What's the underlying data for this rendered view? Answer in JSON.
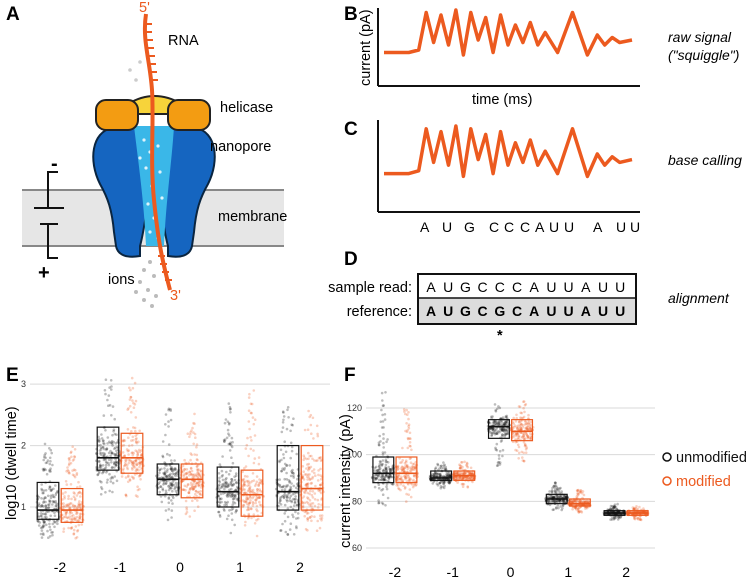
{
  "colors": {
    "orange": "#ec5a1f",
    "blue": "#1565c0",
    "lightblue": "#3ab7e8",
    "helicase": "#f39c12",
    "helicaseTop": "#f7d33a",
    "membrane": "#e6e6e6",
    "black": "#111111"
  },
  "panelA": {
    "letter": "A",
    "five_prime": "5'",
    "three_prime": "3'",
    "rna": "RNA",
    "helicase": "helicase",
    "nanopore": "nanopore",
    "membrane": "membrane",
    "ions": "ions",
    "minus": "-",
    "plus": "+"
  },
  "panelB": {
    "letter": "B",
    "ylabel": "current (pA)",
    "xlabel": "time (ms)",
    "caption_line1": "raw signal",
    "caption_line2": "(\"squiggle\")"
  },
  "panelC": {
    "letter": "C",
    "caption": "base calling",
    "bases": [
      "A",
      "U",
      "G",
      "C",
      "C",
      "C",
      "A",
      "U",
      "U",
      "A",
      "U",
      "U"
    ]
  },
  "panelD": {
    "letter": "D",
    "sample_label": "sample read:",
    "reference_label": "reference:",
    "sample_seq": [
      "A",
      "U",
      "G",
      "C",
      "C",
      "C",
      "A",
      "U",
      "U",
      "A",
      "U",
      "U"
    ],
    "reference_seq": [
      "A",
      "U",
      "G",
      "C",
      "G",
      "C",
      "A",
      "U",
      "U",
      "A",
      "U",
      "U"
    ],
    "mismatch_marker": "*",
    "caption": "alignment"
  },
  "panelE": {
    "letter": "E",
    "ylabel": "log10 (dwell time)",
    "yticks": [
      "1",
      "2",
      "3"
    ],
    "categories": [
      "-2",
      "-1",
      "0",
      "1",
      "2"
    ]
  },
  "panelF": {
    "letter": "F",
    "ylabel": "current intensity (pA)",
    "yticks": [
      "60",
      "80",
      "100",
      "120"
    ],
    "categories": [
      "-2",
      "-1",
      "0",
      "1",
      "2"
    ],
    "legend": [
      {
        "label": "unmodified",
        "color": "#111111"
      },
      {
        "label": "modified",
        "color": "#ec5a1f"
      }
    ]
  },
  "chart_data": [
    {
      "type": "box",
      "ylabel": "log10 (dwell time)",
      "categories": [
        "-2",
        "-1",
        "0",
        "1",
        "2"
      ],
      "ylim": [
        0.3,
        3.1
      ],
      "series": [
        {
          "name": "unmodified",
          "q1": [
            0.8,
            1.6,
            1.2,
            1.0,
            0.95
          ],
          "median": [
            0.95,
            1.8,
            1.45,
            1.25,
            1.25
          ],
          "q3": [
            1.4,
            2.3,
            1.7,
            1.65,
            2.0
          ],
          "min": [
            0.5,
            1.2,
            0.75,
            0.55,
            0.55
          ],
          "max": [
            2.1,
            3.1,
            2.6,
            2.7,
            2.7
          ]
        },
        {
          "name": "modified",
          "q1": [
            0.75,
            1.55,
            1.15,
            0.85,
            0.95
          ],
          "median": [
            0.95,
            1.8,
            1.45,
            1.2,
            1.3
          ],
          "q3": [
            1.3,
            2.2,
            1.7,
            1.6,
            2.0
          ],
          "min": [
            0.45,
            1.15,
            0.7,
            0.5,
            0.55
          ],
          "max": [
            2.0,
            3.1,
            2.6,
            2.9,
            2.6
          ]
        }
      ]
    },
    {
      "type": "box",
      "ylabel": "current intensity (pA)",
      "categories": [
        "-2",
        "-1",
        "0",
        "1",
        "2"
      ],
      "ylim": [
        57,
        132
      ],
      "series": [
        {
          "name": "unmodified",
          "q1": [
            88,
            89,
            107,
            79,
            74
          ],
          "median": [
            92,
            90,
            112,
            81,
            75
          ],
          "q3": [
            99,
            93,
            115,
            83,
            76
          ],
          "min": [
            78,
            85,
            95,
            76,
            72
          ],
          "max": [
            127,
            97,
            122,
            88,
            79
          ]
        },
        {
          "name": "modified",
          "q1": [
            88,
            89,
            106,
            78,
            74
          ],
          "median": [
            92,
            91,
            110,
            79,
            75
          ],
          "q3": [
            99,
            93,
            115,
            81,
            76
          ],
          "min": [
            79,
            85,
            96,
            75,
            72
          ],
          "max": [
            120,
            97,
            123,
            85,
            78
          ]
        }
      ]
    }
  ]
}
